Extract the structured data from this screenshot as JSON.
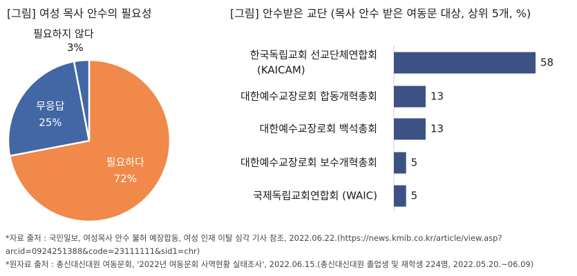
{
  "chart_data": [
    {
      "type": "pie",
      "title": "[그림] 여성 목사 안수의 필요성",
      "slices": [
        {
          "label": "필요하다",
          "value": 72,
          "value_label": "72%",
          "color": "#f0894a"
        },
        {
          "label": "무응답",
          "value": 25,
          "value_label": "25%",
          "color": "#4366a4"
        },
        {
          "label": "필요하지 않다",
          "value": 3,
          "value_label": "3%",
          "color": "#4366a4"
        }
      ]
    },
    {
      "type": "bar",
      "orientation": "horizontal",
      "title": "[그림] 안수받은 교단 (목사 안수 받은 여동문 대상, 상위 5개, %)",
      "categories": [
        [
          "한국독립교회 선교단체연합회",
          "(KAICAM)"
        ],
        [
          "대한예수교장로회 합동개혁총회"
        ],
        [
          "대한예수교장로회 백석총회"
        ],
        [
          "대한예수교장로회 보수개혁총회"
        ],
        [
          "국제독립교회연합회 (WAIC)"
        ]
      ],
      "values": [
        58,
        13,
        13,
        5,
        5
      ],
      "value_labels": [
        "58",
        "13",
        "13",
        "5",
        "5"
      ],
      "color": "#3c5285",
      "xlim": [
        0,
        58
      ]
    }
  ],
  "notes": {
    "source_line1": "*자료 출처 : 국민일보, 여성목사 안수 불허 예장합동, 여성 인재 이탈 심각 기사 참조, 2022.06.22.(https://news.kmib.co.kr/article/view.asp?",
    "source_line2": "arcid=0924251388&code=23111111&sid1=chr)",
    "source_line3": "*원자료 출처 : 총신대신대원 여동문회, '2022년 여동문회 사역현황 실태조사', 2022.06.15.(총신대신대원 졸업생 및 재학생 224명, 2022.05.20.~06.09)"
  }
}
